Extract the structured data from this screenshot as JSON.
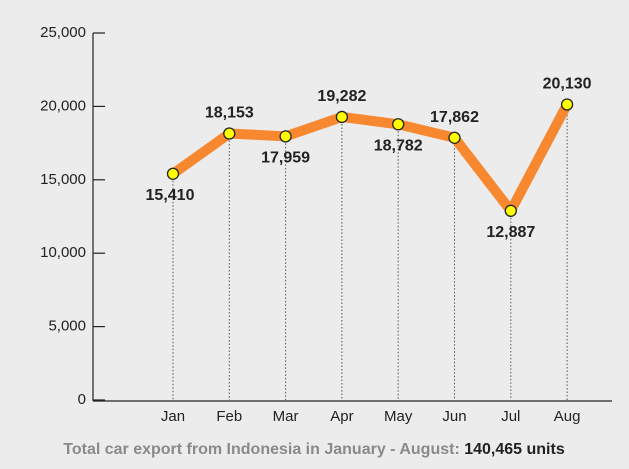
{
  "chart_data": {
    "type": "line",
    "categories": [
      "Jan",
      "Feb",
      "Mar",
      "Apr",
      "May",
      "Jun",
      "Jul",
      "Aug"
    ],
    "values": [
      15410,
      18153,
      17959,
      19282,
      18782,
      17862,
      12887,
      20130
    ],
    "value_labels": [
      "15,410",
      "18,153",
      "17,959",
      "19,282",
      "18,782",
      "17,862",
      "12,887",
      "20,130"
    ],
    "color": "#f7882f",
    "marker_color": "#ffff00",
    "ylim": [
      0,
      25000
    ],
    "yticks": [
      0,
      {
        "value": 5000,
        "label": "5,000"
      },
      {
        "value": 10000,
        "label": "10,000"
      },
      {
        "value": 15000,
        "label": "15,000"
      },
      {
        "value": 20000,
        "label": "20,000"
      },
      {
        "value": 25000,
        "label": "25,000"
      }
    ],
    "caption": "Total car export from Indonesia in January - August:",
    "caption_total": "140,465 units"
  }
}
